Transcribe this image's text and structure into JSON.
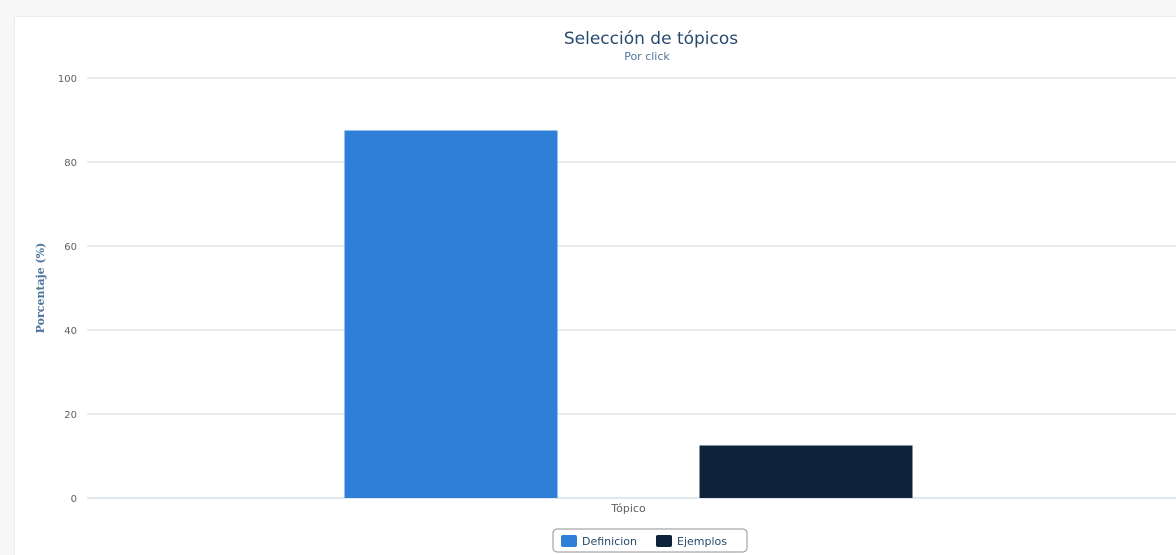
{
  "chart_data": {
    "type": "bar",
    "title": "Selección de tópicos",
    "subtitle": "Por click",
    "xlabel": "",
    "ylabel": "Porcentaje (%)",
    "categories": [
      "Tópico"
    ],
    "series": [
      {
        "name": "Definicion",
        "values": [
          87.5
        ],
        "color": "#2f7ed8"
      },
      {
        "name": "Ejemplos",
        "values": [
          12.5
        ],
        "color": "#0d233a"
      }
    ],
    "ylim": [
      0,
      100
    ],
    "yticks": [
      0,
      20,
      40,
      60,
      80,
      100
    ],
    "grid": true,
    "legend_position": "bottom-center"
  }
}
